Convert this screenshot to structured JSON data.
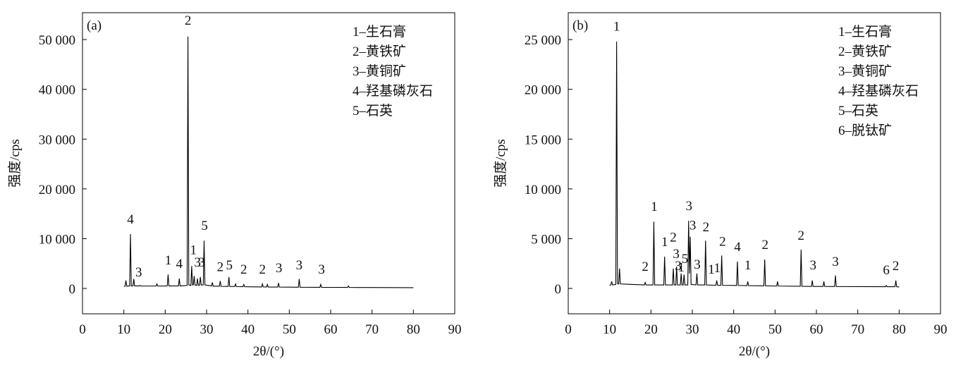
{
  "chart_data": [
    {
      "type": "line",
      "panel": "(a)",
      "xlabel": "2θ/(°)",
      "ylabel": "强度/cps",
      "color": "#000000",
      "legend_text": [
        "1–生石膏",
        "2–黄铁矿",
        "3–黄铜矿",
        "4–羟基磷灰石",
        "5–石英"
      ],
      "xlim": [
        0,
        90
      ],
      "xticks": [
        0,
        10,
        20,
        30,
        40,
        50,
        60,
        70,
        80,
        90
      ],
      "ylim": [
        -5100,
        55400
      ],
      "yticks": [
        0,
        {
          "value": 10000,
          "label": "10 000"
        },
        {
          "value": 20000,
          "label": "20 000"
        },
        {
          "value": 30000,
          "label": "30 000"
        },
        {
          "value": 40000,
          "label": "40 000"
        },
        {
          "value": 50000,
          "label": "50 000"
        }
      ],
      "x": [
        10,
        10.3,
        10.5,
        10.7,
        11.4,
        11.6,
        11.8,
        12.2,
        12.4,
        12.6,
        13.8,
        14.0,
        14.2,
        17.8,
        18.0,
        18.2,
        20.5,
        20.7,
        20.9,
        23.2,
        23.4,
        23.6,
        25.3,
        25.5,
        25.7,
        26.2,
        26.4,
        26.6,
        26.8,
        27.0,
        27.2,
        27.6,
        27.8,
        28.0,
        28.3,
        28.5,
        28.7,
        29.2,
        29.4,
        29.6,
        31.2,
        31.4,
        31.6,
        33.1,
        33.3,
        33.5,
        35.2,
        35.4,
        35.6,
        36.8,
        37.0,
        37.2,
        38.8,
        39.0,
        39.2,
        43.3,
        43.5,
        43.7,
        44.5,
        44.7,
        44.9,
        47.2,
        47.4,
        47.6,
        52.2,
        52.4,
        52.6,
        57.4,
        57.6,
        57.8,
        64.1,
        64.3,
        64.5,
        70,
        80
      ],
      "values": [
        400,
        450,
        1600,
        450,
        500,
        10900,
        500,
        500,
        1900,
        500,
        500,
        600,
        480,
        480,
        900,
        480,
        500,
        2800,
        500,
        500,
        2000,
        500,
        600,
        50600,
        700,
        600,
        4500,
        700,
        700,
        2500,
        700,
        600,
        2000,
        650,
        650,
        2300,
        700,
        700,
        9600,
        700,
        500,
        1200,
        450,
        450,
        1500,
        420,
        400,
        2300,
        400,
        380,
        900,
        370,
        350,
        800,
        340,
        300,
        900,
        300,
        290,
        800,
        280,
        270,
        1100,
        270,
        240,
        1900,
        240,
        220,
        800,
        220,
        200,
        500,
        200,
        180,
        150
      ],
      "annotations": [
        {
          "text": "4",
          "x": 11.6,
          "y": 13030
        },
        {
          "text": "3",
          "x": 13.6,
          "y": 2400
        },
        {
          "text": "1",
          "x": 20.7,
          "y": 4800
        },
        {
          "text": "4",
          "x": 23.4,
          "y": 4100
        },
        {
          "text": "2",
          "x": 25.5,
          "y": 53000
        },
        {
          "text": "1",
          "x": 26.8,
          "y": 6900
        },
        {
          "text": "3",
          "x": 27.8,
          "y": 4400
        },
        {
          "text": "3",
          "x": 28.8,
          "y": 4400
        },
        {
          "text": "5",
          "x": 29.5,
          "y": 11750
        },
        {
          "text": "2",
          "x": 33.3,
          "y": 3500
        },
        {
          "text": "5",
          "x": 35.5,
          "y": 3800
        },
        {
          "text": "2",
          "x": 39.0,
          "y": 3000
        },
        {
          "text": "2",
          "x": 43.5,
          "y": 3000
        },
        {
          "text": "3",
          "x": 47.5,
          "y": 3250
        },
        {
          "text": "3",
          "x": 52.4,
          "y": 3800
        },
        {
          "text": "3",
          "x": 57.8,
          "y": 3000
        }
      ]
    },
    {
      "type": "line",
      "panel": "(b)",
      "xlabel": "2θ/(°)",
      "ylabel": "强度/cps",
      "color": "#000000",
      "legend_text": [
        "1–生石膏",
        "2–黄铁矿",
        "3–黄铜矿",
        "4–羟基磷灰石",
        "5–石英",
        "6–脱钛矿"
      ],
      "xlim": [
        0,
        90
      ],
      "xticks": [
        0,
        10,
        20,
        30,
        40,
        50,
        60,
        70,
        80,
        90
      ],
      "ylim": [
        -2550,
        27700
      ],
      "yticks": [
        0,
        {
          "value": 5000,
          "label": "5 000"
        },
        {
          "value": 10000,
          "label": "10 000"
        },
        {
          "value": 15000,
          "label": "15 000"
        },
        {
          "value": 20000,
          "label": "20 000"
        },
        {
          "value": 25000,
          "label": "25 000"
        }
      ],
      "x": [
        10,
        10.3,
        10.5,
        10.7,
        11.5,
        11.7,
        11.9,
        12.2,
        12.4,
        12.6,
        18.4,
        18.6,
        18.8,
        20.5,
        20.7,
        20.9,
        23.1,
        23.3,
        23.5,
        25.2,
        25.4,
        25.6,
        26.0,
        26.2,
        26.4,
        27.1,
        27.3,
        27.5,
        27.8,
        28.0,
        28.2,
        28.9,
        29.1,
        29.3,
        29.5,
        29.7,
        30.9,
        31.1,
        31.3,
        33.0,
        33.2,
        33.4,
        35.7,
        35.9,
        36.1,
        36.9,
        37.1,
        37.3,
        40.7,
        40.9,
        41.1,
        43.2,
        43.4,
        43.6,
        47.3,
        47.5,
        47.7,
        50.4,
        50.6,
        50.8,
        56.1,
        56.3,
        56.5,
        58.8,
        59.0,
        59.2,
        61.6,
        61.8,
        62.0,
        64.4,
        64.6,
        64.8,
        76.7,
        76.9,
        77.1,
        79.0,
        79.2,
        79.4,
        80
      ],
      "values": [
        300,
        350,
        700,
        350,
        400,
        24800,
        500,
        450,
        2000,
        450,
        350,
        600,
        350,
        350,
        6700,
        350,
        350,
        3200,
        350,
        350,
        2000,
        350,
        350,
        2200,
        350,
        350,
        1500,
        350,
        350,
        1400,
        350,
        350,
        6800,
        1500,
        5200,
        400,
        350,
        1500,
        350,
        350,
        4800,
        350,
        320,
        800,
        320,
        320,
        3300,
        320,
        300,
        2700,
        300,
        280,
        700,
        280,
        260,
        2900,
        260,
        240,
        700,
        240,
        220,
        3900,
        220,
        200,
        800,
        200,
        200,
        700,
        200,
        190,
        1300,
        190,
        170,
        300,
        170,
        170,
        800,
        170,
        150
      ],
      "annotations": [
        {
          "text": "1",
          "x": 11.7,
          "y": 25900
        },
        {
          "text": "2",
          "x": 18.6,
          "y": 1770
        },
        {
          "text": "1",
          "x": 20.8,
          "y": 7800
        },
        {
          "text": "1",
          "x": 23.3,
          "y": 4250
        },
        {
          "text": "2",
          "x": 25.4,
          "y": 4700
        },
        {
          "text": "3",
          "x": 26.1,
          "y": 3050
        },
        {
          "text": "3",
          "x": 26.6,
          "y": 1840
        },
        {
          "text": "1",
          "x": 27.3,
          "y": 1700
        },
        {
          "text": "5",
          "x": 28.2,
          "y": 2550
        },
        {
          "text": "3",
          "x": 29.2,
          "y": 7850
        },
        {
          "text": "3",
          "x": 30.1,
          "y": 5900
        },
        {
          "text": "3",
          "x": 31.2,
          "y": 2000
        },
        {
          "text": "2",
          "x": 33.3,
          "y": 5750
        },
        {
          "text": "1",
          "x": 34.6,
          "y": 1500
        },
        {
          "text": "1",
          "x": 36.0,
          "y": 1630
        },
        {
          "text": "2",
          "x": 37.3,
          "y": 4300
        },
        {
          "text": "4",
          "x": 40.9,
          "y": 3750
        },
        {
          "text": "1",
          "x": 43.4,
          "y": 1900
        },
        {
          "text": "2",
          "x": 47.6,
          "y": 3950
        },
        {
          "text": "2",
          "x": 56.3,
          "y": 4900
        },
        {
          "text": "3",
          "x": 59.2,
          "y": 1900
        },
        {
          "text": "3",
          "x": 64.6,
          "y": 2250
        },
        {
          "text": "6",
          "x": 76.9,
          "y": 1400
        },
        {
          "text": "2",
          "x": 79.2,
          "y": 1850
        }
      ]
    }
  ]
}
